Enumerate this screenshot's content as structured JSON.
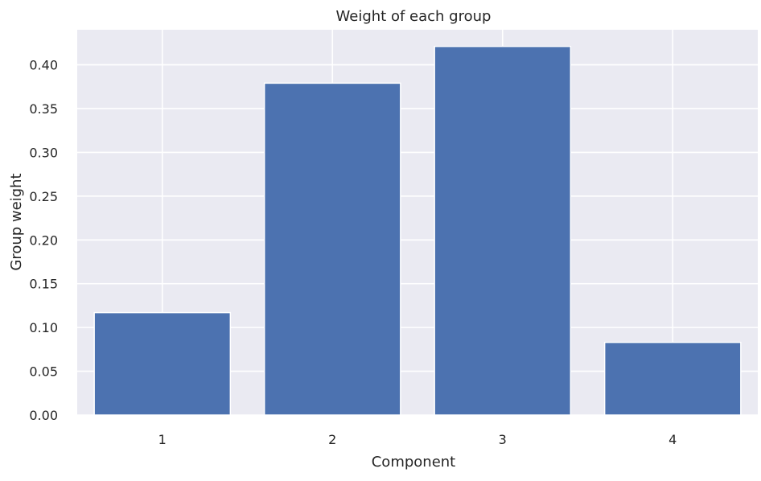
{
  "chart_data": {
    "type": "bar",
    "title": "Weight of each group",
    "xlabel": "Component",
    "ylabel": "Group weight",
    "categories": [
      "1",
      "2",
      "3",
      "4"
    ],
    "values": [
      0.117,
      0.379,
      0.421,
      0.083
    ],
    "ylim": [
      0,
      0.44
    ],
    "yticks": [
      "0.00",
      "0.05",
      "0.10",
      "0.15",
      "0.20",
      "0.25",
      "0.30",
      "0.35",
      "0.40"
    ],
    "grid": true,
    "colors": {
      "bar": "#4c72b0",
      "background": "#eaeaf2",
      "grid": "#ffffff"
    }
  }
}
